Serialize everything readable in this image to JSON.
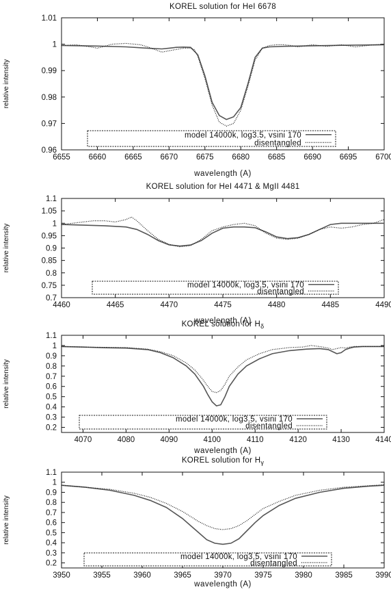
{
  "chart_data": [
    {
      "type": "line",
      "title": "KOREL solution for HeI 6678",
      "xlabel": "wavelength (A)",
      "ylabel": "relative intensity",
      "xlim": [
        6655,
        6700
      ],
      "ylim": [
        0.96,
        1.01
      ],
      "xticks": [
        6655,
        6660,
        6665,
        6670,
        6675,
        6680,
        6685,
        6690,
        6695,
        6700
      ],
      "yticks": [
        0.96,
        0.97,
        0.98,
        0.99,
        1,
        1.01
      ],
      "ytick_labels": [
        "0.96",
        "0.97",
        "0.98",
        "0.99",
        "1",
        "1.01"
      ],
      "legend_position": "bottom-center",
      "series": [
        {
          "name": "model 14000k, log3.5, vsini 170",
          "style": "solid",
          "x": [
            6655,
            6660,
            6664,
            6667,
            6669,
            6670,
            6671,
            6672,
            6673,
            6674,
            6675,
            6676,
            6677,
            6678,
            6679,
            6680,
            6681,
            6682,
            6683,
            6684,
            6686,
            6690,
            6695,
            6700
          ],
          "y": [
            0.9995,
            0.9993,
            0.999,
            0.9985,
            0.9982,
            0.9985,
            0.9988,
            0.9989,
            0.9988,
            0.996,
            0.988,
            0.978,
            0.973,
            0.9715,
            0.9725,
            0.976,
            0.985,
            0.995,
            0.9985,
            0.999,
            0.9992,
            0.9994,
            0.9996,
            0.9998
          ]
        },
        {
          "name": "disentangled",
          "style": "dotted",
          "x": [
            6655,
            6657,
            6659,
            6660,
            6661,
            6662,
            6664,
            6666,
            6667,
            6668,
            6669,
            6670,
            6671,
            6672,
            6673,
            6673.5,
            6674,
            6675,
            6676,
            6677,
            6678,
            6679,
            6680,
            6681,
            6682,
            6683,
            6684,
            6685,
            6686,
            6687,
            6688,
            6690,
            6692,
            6694,
            6696,
            6698,
            6700
          ],
          "y": [
            0.9995,
            0.9998,
            0.999,
            0.9985,
            0.9992,
            1.0,
            1.0003,
            0.9998,
            0.999,
            0.998,
            0.997,
            0.9975,
            0.998,
            0.9985,
            0.9985,
            0.998,
            0.9955,
            0.987,
            0.977,
            0.9705,
            0.969,
            0.97,
            0.975,
            0.984,
            0.994,
            0.9985,
            0.9995,
            0.9998,
            0.9998,
            0.9995,
            0.999,
            0.9998,
            0.9992,
            0.9998,
            0.999,
            0.9996,
            1.0
          ]
        }
      ]
    },
    {
      "type": "line",
      "title": "KOREL solution for HeI 4471 & MgII 4481",
      "xlabel": "wavelength (A)",
      "ylabel": "relative intensity",
      "xlim": [
        4460,
        4490
      ],
      "ylim": [
        0.7,
        1.1
      ],
      "xticks": [
        4460,
        4465,
        4470,
        4475,
        4480,
        4485,
        4490
      ],
      "yticks": [
        0.7,
        0.75,
        0.8,
        0.85,
        0.9,
        0.95,
        1,
        1.05,
        1.1
      ],
      "ytick_labels": [
        "0.7",
        "0.75",
        "0.8",
        "0.85",
        "0.9",
        "0.95",
        "1",
        "1.05",
        "1.1"
      ],
      "legend_position": "bottom-center",
      "series": [
        {
          "name": "model 14000k, log3.5, vsini 170",
          "style": "solid",
          "x": [
            4460,
            4464,
            4466,
            4467,
            4468,
            4469,
            4470,
            4471,
            4472,
            4473,
            4474,
            4475,
            4476,
            4477,
            4478,
            4479,
            4480,
            4481,
            4482,
            4483,
            4484,
            4485,
            4486,
            4490
          ],
          "y": [
            0.995,
            0.99,
            0.985,
            0.975,
            0.955,
            0.93,
            0.913,
            0.908,
            0.912,
            0.93,
            0.96,
            0.98,
            0.985,
            0.985,
            0.982,
            0.965,
            0.945,
            0.938,
            0.942,
            0.955,
            0.975,
            0.995,
            1.0,
            1.0
          ]
        },
        {
          "name": "disentangled",
          "style": "dotted",
          "x": [
            4460,
            4461,
            4462,
            4463,
            4464,
            4465,
            4466,
            4466.5,
            4467,
            4468,
            4469,
            4470,
            4471,
            4472,
            4473,
            4474,
            4475,
            4476,
            4477,
            4478,
            4479,
            4480,
            4481,
            4482,
            4483,
            4484,
            4485,
            4486,
            4487,
            4488,
            4489,
            4490
          ],
          "y": [
            0.995,
            1.0,
            1.005,
            1.01,
            1.01,
            1.005,
            1.015,
            1.025,
            1.01,
            0.97,
            0.935,
            0.915,
            0.905,
            0.91,
            0.935,
            0.97,
            0.985,
            0.995,
            1.0,
            0.99,
            0.96,
            0.94,
            0.935,
            0.94,
            0.955,
            0.975,
            0.985,
            0.98,
            0.985,
            0.995,
            1.0,
            1.015
          ]
        }
      ]
    },
    {
      "type": "line",
      "title": "KOREL solution for Hδ",
      "xlabel": "wavelength (A)",
      "ylabel": "relative intensity",
      "xlim": [
        4065,
        4140
      ],
      "ylim": [
        0.15,
        1.1
      ],
      "xticks": [
        4070,
        4080,
        4090,
        4100,
        4110,
        4120,
        4130,
        4140
      ],
      "yticks": [
        0.2,
        0.3,
        0.4,
        0.5,
        0.6,
        0.7,
        0.8,
        0.9,
        1,
        1.1
      ],
      "ytick_labels": [
        "0.2",
        "0.3",
        "0.4",
        "0.5",
        "0.6",
        "0.7",
        "0.8",
        "0.9",
        "1",
        "1.1"
      ],
      "legend_position": "bottom-center",
      "series": [
        {
          "name": "model 14000k, log3.5, vsini 170",
          "style": "solid",
          "x": [
            4065,
            4070,
            4075,
            4080,
            4085,
            4088,
            4091,
            4094,
            4096,
            4098,
            4099,
            4100,
            4101,
            4102,
            4103,
            4104,
            4106,
            4108,
            4111,
            4114,
            4118,
            4122,
            4125,
            4127,
            4128,
            4129,
            4130,
            4131,
            4132,
            4133,
            4135,
            4140
          ],
          "y": [
            0.99,
            0.985,
            0.978,
            0.975,
            0.96,
            0.93,
            0.88,
            0.8,
            0.72,
            0.6,
            0.52,
            0.45,
            0.41,
            0.42,
            0.5,
            0.6,
            0.72,
            0.8,
            0.87,
            0.92,
            0.95,
            0.965,
            0.97,
            0.96,
            0.94,
            0.92,
            0.93,
            0.96,
            0.975,
            0.985,
            0.99,
            0.99
          ]
        },
        {
          "name": "disentangled",
          "style": "dotted",
          "x": [
            4065,
            4070,
            4075,
            4080,
            4085,
            4088,
            4091,
            4094,
            4096,
            4098,
            4099,
            4100,
            4101,
            4102,
            4103,
            4104,
            4106,
            4108,
            4111,
            4114,
            4118,
            4121,
            4123,
            4125,
            4127,
            4128,
            4129,
            4130,
            4131,
            4132,
            4133,
            4135,
            4140
          ],
          "y": [
            0.99,
            0.985,
            0.982,
            0.98,
            0.965,
            0.94,
            0.9,
            0.83,
            0.76,
            0.66,
            0.6,
            0.55,
            0.54,
            0.56,
            0.62,
            0.7,
            0.79,
            0.86,
            0.92,
            0.96,
            0.98,
            0.985,
            1.0,
            0.99,
            0.975,
            0.96,
            0.97,
            0.98,
            0.975,
            0.985,
            0.99,
            0.99,
            0.99
          ]
        }
      ]
    },
    {
      "type": "line",
      "title": "KOREL solution for Hγ",
      "xlabel": "wavelength (A)",
      "ylabel": "relative intensity",
      "xlim": [
        3950,
        3990
      ],
      "ylim": [
        0.15,
        1.1
      ],
      "xticks": [
        3950,
        3955,
        3960,
        3965,
        3970,
        3975,
        3980,
        3985,
        3990
      ],
      "yticks": [
        0.2,
        0.3,
        0.4,
        0.5,
        0.6,
        0.7,
        0.8,
        0.9,
        1,
        1.1
      ],
      "ytick_labels": [
        "0.2",
        "0.3",
        "0.4",
        "0.5",
        "0.6",
        "0.7",
        "0.8",
        "0.9",
        "1",
        "1.1"
      ],
      "legend_position": "bottom-center",
      "series": [
        {
          "name": "model 14000k, log3.5, vsini 170",
          "style": "solid",
          "x": [
            3950,
            3953,
            3956,
            3959,
            3961,
            3963,
            3965,
            3966,
            3967,
            3968,
            3969,
            3970,
            3971,
            3972,
            3973,
            3974,
            3975,
            3977,
            3979,
            3982,
            3985,
            3988,
            3990
          ],
          "y": [
            0.97,
            0.95,
            0.92,
            0.87,
            0.82,
            0.75,
            0.64,
            0.57,
            0.5,
            0.43,
            0.395,
            0.385,
            0.395,
            0.44,
            0.52,
            0.6,
            0.67,
            0.77,
            0.84,
            0.9,
            0.94,
            0.96,
            0.97
          ]
        },
        {
          "name": "disentangled",
          "style": "dotted",
          "x": [
            3950,
            3953,
            3956,
            3959,
            3961,
            3963,
            3965,
            3966,
            3967,
            3968,
            3969,
            3970,
            3971,
            3972,
            3973,
            3974,
            3975,
            3977,
            3979,
            3982,
            3985,
            3988,
            3990
          ],
          "y": [
            0.97,
            0.95,
            0.93,
            0.89,
            0.85,
            0.79,
            0.71,
            0.66,
            0.61,
            0.57,
            0.54,
            0.53,
            0.54,
            0.57,
            0.62,
            0.68,
            0.74,
            0.81,
            0.87,
            0.92,
            0.95,
            0.965,
            0.975
          ]
        }
      ]
    }
  ]
}
